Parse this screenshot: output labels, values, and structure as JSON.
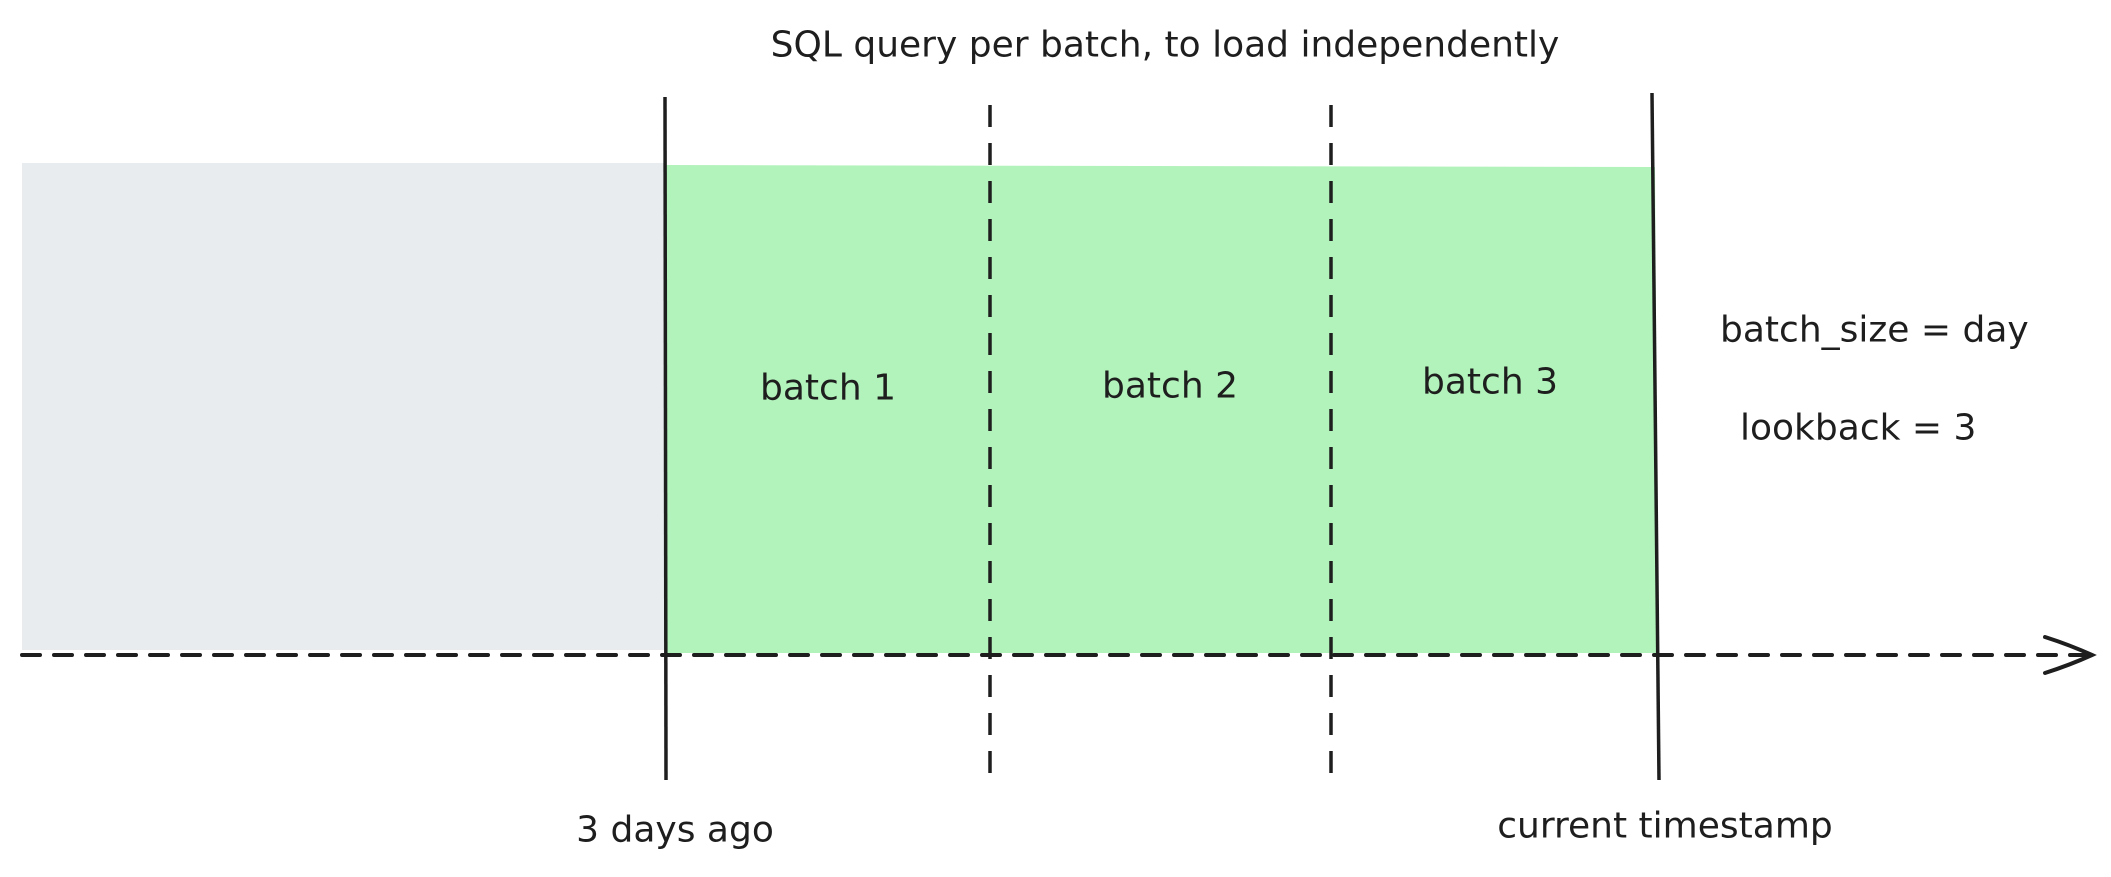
{
  "title": "SQL query per batch, to load independently",
  "batches": [
    {
      "label": "batch 1"
    },
    {
      "label": "batch 2"
    },
    {
      "label": "batch 3"
    }
  ],
  "params": {
    "batch_size": "batch_size = day",
    "lookback": "lookback = 3"
  },
  "markers": {
    "start": "3 days ago",
    "end": "current timestamp"
  },
  "colors": {
    "past_region": "#e8ecef",
    "batch_region": "#b2f2bb",
    "stroke": "#1e1e1e"
  }
}
